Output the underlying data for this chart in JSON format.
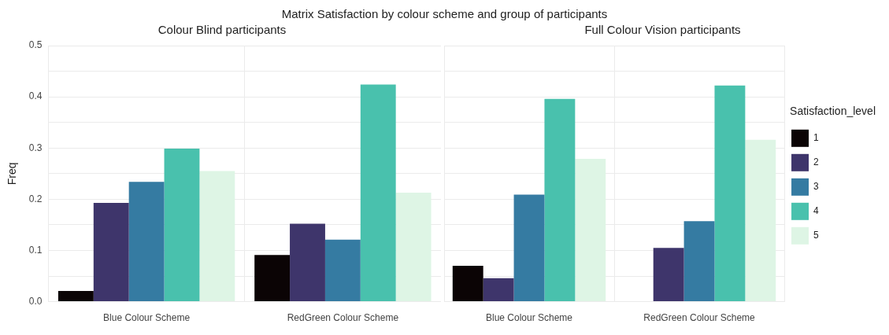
{
  "chart_data": [
    {
      "type": "bar",
      "title": "Matrix Satisfaction by colour scheme and group of participants",
      "subtitle": "Colour Blind participants",
      "ylabel": "Freq",
      "categories": [
        "Blue Colour Scheme",
        "RedGreen Colour Scheme"
      ],
      "series": [
        {
          "color": "#0b0405",
          "values": [
            0.021,
            0.091
          ]
        },
        {
          "color": "#3e356b",
          "values": [
            0.193,
            0.152
          ]
        },
        {
          "color": "#357ba2",
          "values": [
            0.234,
            0.121
          ]
        },
        {
          "color": "#49c1ad",
          "values": [
            0.299,
            0.424
          ]
        },
        {
          "color": "#def5e5",
          "values": [
            0.255,
            0.213
          ]
        }
      ],
      "ylim": [
        0,
        0.5
      ],
      "yticks": [
        {
          "value": 0,
          "label": "0.0"
        },
        {
          "value": 0.05,
          "label": null
        },
        {
          "value": 0.1,
          "label": "0.1"
        },
        {
          "value": 0.15,
          "label": null
        },
        {
          "value": 0.2,
          "label": "0.2"
        },
        {
          "value": 0.25,
          "label": null
        },
        {
          "value": 0.3,
          "label": "0.3"
        },
        {
          "value": 0.35,
          "label": null
        },
        {
          "value": 0.4,
          "label": "0.4"
        },
        {
          "value": 0.45,
          "label": null
        },
        {
          "value": 0.5,
          "label": "0.5"
        }
      ],
      "grid": true,
      "legend": false
    },
    {
      "type": "bar",
      "subtitle": "Full Colour Vision participants",
      "categories": [
        "Blue Colour Scheme",
        "RedGreen Colour Scheme"
      ],
      "legend_title": "Satisfaction_level",
      "series": [
        {
          "name": "1",
          "color": "#0b0405",
          "values": [
            0.07,
            0
          ]
        },
        {
          "name": "2",
          "color": "#3e356b",
          "values": [
            0.046,
            0.105
          ]
        },
        {
          "name": "3",
          "color": "#357ba2",
          "values": [
            0.209,
            0.157
          ]
        },
        {
          "name": "4",
          "color": "#49c1ad",
          "values": [
            0.396,
            0.422
          ]
        },
        {
          "name": "5",
          "color": "#def5e5",
          "values": [
            0.279,
            0.316
          ]
        }
      ],
      "ylim": [
        0,
        0.5
      ],
      "yticks": [
        {
          "value": 0,
          "label": null
        },
        {
          "value": 0.05,
          "label": null
        },
        {
          "value": 0.1,
          "label": null
        },
        {
          "value": 0.15,
          "label": null
        },
        {
          "value": 0.2,
          "label": null
        },
        {
          "value": 0.25,
          "label": null
        },
        {
          "value": 0.3,
          "label": null
        },
        {
          "value": 0.35,
          "label": null
        },
        {
          "value": 0.4,
          "label": null
        },
        {
          "value": 0.45,
          "label": null
        },
        {
          "value": 0.5,
          "label": null
        }
      ],
      "grid": true,
      "tick_labels": "x",
      "legend": "right"
    }
  ]
}
